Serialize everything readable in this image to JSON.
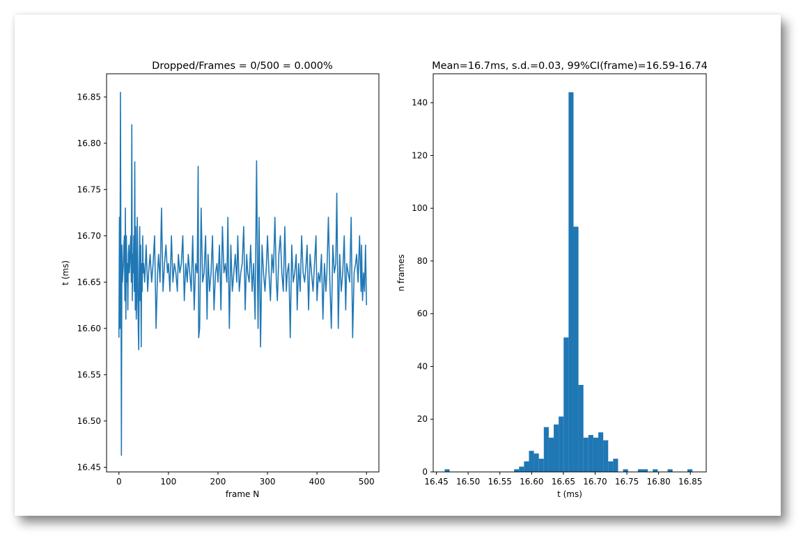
{
  "colors": {
    "series": "#1f77b4",
    "axis": "#000000",
    "background": "#ffffff"
  },
  "chart_data": [
    {
      "type": "line",
      "title": "Dropped/Frames = 0/500 = 0.000%",
      "xlabel": "frame N",
      "ylabel": "t (ms)",
      "xlim": [
        -25,
        525
      ],
      "ylim": [
        16.445,
        16.875
      ],
      "xticks": [
        0,
        100,
        200,
        300,
        400,
        500
      ],
      "yticks": [
        16.45,
        16.5,
        16.55,
        16.6,
        16.65,
        16.7,
        16.75,
        16.8,
        16.85
      ],
      "ytick_labels": [
        "16.45",
        "16.50",
        "16.55",
        "16.60",
        "16.65",
        "16.70",
        "16.75",
        "16.80",
        "16.85"
      ],
      "series": [
        {
          "x": [
            0,
            1,
            2,
            3,
            4,
            5,
            6,
            7,
            8,
            9,
            10,
            11,
            12,
            13,
            14,
            15,
            16,
            17,
            18,
            19,
            20,
            21,
            22,
            23,
            24,
            25,
            26,
            27,
            28,
            29,
            30,
            31,
            32,
            33,
            34,
            35,
            36,
            37,
            38,
            39,
            40,
            41,
            42,
            43,
            44,
            45,
            46,
            47,
            48,
            49,
            50,
            52,
            55,
            58,
            60,
            63,
            66,
            69,
            72,
            75,
            78,
            80,
            83,
            86,
            89,
            92,
            95,
            98,
            100,
            103,
            106,
            109,
            112,
            115,
            118,
            120,
            123,
            126,
            129,
            132,
            135,
            138,
            140,
            143,
            146,
            149,
            152,
            155,
            158,
            160,
            161,
            163,
            166,
            169,
            172,
            175,
            178,
            180,
            183,
            186,
            189,
            192,
            195,
            198,
            200,
            203,
            206,
            209,
            212,
            215,
            218,
            220,
            223,
            226,
            229,
            232,
            235,
            238,
            240,
            243,
            246,
            249,
            252,
            255,
            258,
            260,
            263,
            266,
            269,
            272,
            275,
            278,
            280,
            281,
            283,
            286,
            289,
            292,
            295,
            298,
            300,
            303,
            306,
            309,
            312,
            315,
            318,
            320,
            323,
            326,
            329,
            332,
            335,
            338,
            340,
            343,
            346,
            349,
            352,
            355,
            358,
            360,
            363,
            366,
            369,
            372,
            375,
            378,
            380,
            383,
            386,
            389,
            392,
            395,
            398,
            400,
            403,
            406,
            409,
            412,
            415,
            418,
            420,
            423,
            426,
            429,
            432,
            435,
            438,
            440,
            443,
            446,
            449,
            452,
            455,
            458,
            460,
            463,
            466,
            469,
            472,
            475,
            478,
            480,
            483,
            486,
            489,
            490,
            492,
            494,
            496,
            498,
            500
          ],
          "y": [
            16.59,
            16.72,
            16.6,
            16.855,
            16.68,
            16.463,
            16.69,
            16.65,
            16.66,
            16.67,
            16.69,
            16.7,
            16.63,
            16.73,
            16.61,
            16.7,
            16.65,
            16.67,
            16.62,
            16.68,
            16.69,
            16.66,
            16.67,
            16.69,
            16.7,
            16.65,
            16.82,
            16.63,
            16.68,
            16.66,
            16.7,
            16.64,
            16.78,
            16.62,
            16.71,
            16.61,
            16.63,
            16.72,
            16.67,
            16.6,
            16.577,
            16.66,
            16.71,
            16.63,
            16.69,
            16.58,
            16.67,
            16.64,
            16.7,
            16.66,
            16.67,
            16.65,
            16.69,
            16.64,
            16.66,
            16.68,
            16.65,
            16.67,
            16.7,
            16.6,
            16.66,
            16.68,
            16.65,
            16.73,
            16.64,
            16.67,
            16.69,
            16.66,
            16.67,
            16.64,
            16.7,
            16.65,
            16.67,
            16.66,
            16.64,
            16.68,
            16.66,
            16.67,
            16.7,
            16.63,
            16.67,
            16.65,
            16.68,
            16.66,
            16.64,
            16.7,
            16.62,
            16.67,
            16.66,
            16.775,
            16.59,
            16.6,
            16.73,
            16.65,
            16.66,
            16.7,
            16.61,
            16.68,
            16.64,
            16.66,
            16.7,
            16.62,
            16.66,
            16.67,
            16.65,
            16.69,
            16.62,
            16.71,
            16.66,
            16.67,
            16.65,
            16.72,
            16.6,
            16.69,
            16.64,
            16.66,
            16.68,
            16.65,
            16.7,
            16.64,
            16.66,
            16.67,
            16.71,
            16.62,
            16.68,
            16.66,
            16.65,
            16.69,
            16.64,
            16.67,
            16.61,
            16.781,
            16.65,
            16.6,
            16.72,
            16.58,
            16.69,
            16.66,
            16.64,
            16.67,
            16.7,
            16.66,
            16.63,
            16.68,
            16.66,
            16.72,
            16.65,
            16.63,
            16.68,
            16.7,
            16.66,
            16.64,
            16.71,
            16.64,
            16.66,
            16.67,
            16.59,
            16.69,
            16.65,
            16.66,
            16.68,
            16.62,
            16.67,
            16.64,
            16.7,
            16.66,
            16.65,
            16.67,
            16.69,
            16.62,
            16.68,
            16.66,
            16.64,
            16.67,
            16.7,
            16.63,
            16.66,
            16.65,
            16.68,
            16.61,
            16.67,
            16.64,
            16.66,
            16.72,
            16.65,
            16.6,
            16.69,
            16.66,
            16.67,
            16.746,
            16.6,
            16.68,
            16.64,
            16.66,
            16.7,
            16.62,
            16.67,
            16.66,
            16.65,
            16.72,
            16.59,
            16.66,
            16.67,
            16.68,
            16.65,
            16.7,
            16.64,
            16.69,
            16.63,
            16.66,
            16.64,
            16.69,
            16.625
          ]
        }
      ]
    },
    {
      "type": "bar",
      "title": "Mean=16.7ms, s.d.=0.03, 99%CI(frame)=16.59-16.74",
      "xlabel": "t (ms)",
      "ylabel": "n frames",
      "xlim": [
        16.445,
        16.875
      ],
      "ylim": [
        0,
        151
      ],
      "xticks": [
        16.45,
        16.5,
        16.55,
        16.6,
        16.65,
        16.7,
        16.75,
        16.8,
        16.85
      ],
      "xtick_labels": [
        "16.45",
        "16.50",
        "16.55",
        "16.60",
        "16.65",
        "16.70",
        "16.75",
        "16.80",
        "16.85"
      ],
      "yticks": [
        0,
        20,
        40,
        60,
        80,
        100,
        120,
        140
      ],
      "bin_width": 0.0078,
      "bins": [
        {
          "x": 16.463,
          "count": 1
        },
        {
          "x": 16.5724,
          "count": 1
        },
        {
          "x": 16.5802,
          "count": 2
        },
        {
          "x": 16.588,
          "count": 4
        },
        {
          "x": 16.5958,
          "count": 8
        },
        {
          "x": 16.6036,
          "count": 7
        },
        {
          "x": 16.6114,
          "count": 5
        },
        {
          "x": 16.6192,
          "count": 17
        },
        {
          "x": 16.627,
          "count": 13
        },
        {
          "x": 16.6348,
          "count": 18
        },
        {
          "x": 16.6426,
          "count": 21
        },
        {
          "x": 16.6504,
          "count": 51
        },
        {
          "x": 16.6582,
          "count": 144
        },
        {
          "x": 16.666,
          "count": 93
        },
        {
          "x": 16.6738,
          "count": 33
        },
        {
          "x": 16.6816,
          "count": 13
        },
        {
          "x": 16.6894,
          "count": 14
        },
        {
          "x": 16.6972,
          "count": 13
        },
        {
          "x": 16.705,
          "count": 15
        },
        {
          "x": 16.7128,
          "count": 12
        },
        {
          "x": 16.7206,
          "count": 4
        },
        {
          "x": 16.7284,
          "count": 5
        },
        {
          "x": 16.744,
          "count": 1
        },
        {
          "x": 16.7674,
          "count": 1
        },
        {
          "x": 16.7752,
          "count": 1
        },
        {
          "x": 16.7908,
          "count": 1
        },
        {
          "x": 16.8142,
          "count": 1
        },
        {
          "x": 16.8454,
          "count": 1
        }
      ]
    }
  ]
}
